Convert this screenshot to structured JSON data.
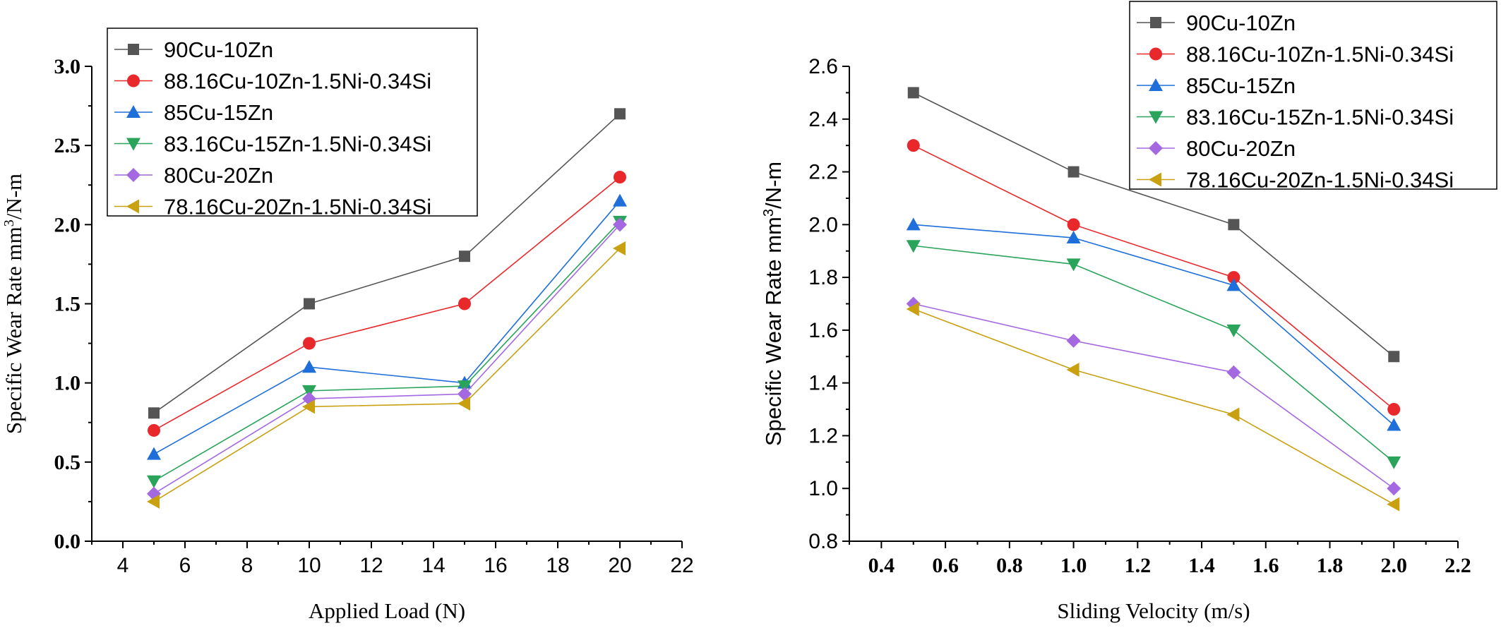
{
  "chart_data": [
    {
      "type": "line",
      "xlabel": "Applied Load (N)",
      "ylabel": "Specific Wear Rate mm³/N-m",
      "ylabel_parts": [
        "Specific Wear Rate mm",
        "3",
        "/N-m"
      ],
      "xlim": [
        3,
        22
      ],
      "ylim": [
        0.0,
        3.0
      ],
      "xticks": [
        4,
        6,
        8,
        10,
        12,
        14,
        16,
        18,
        20,
        22
      ],
      "yticks": [
        0.0,
        0.5,
        1.0,
        1.5,
        2.0,
        2.5,
        3.0
      ],
      "xtick_labels": [
        "4",
        "6",
        "8",
        "10",
        "12",
        "14",
        "16",
        "18",
        "20",
        "22"
      ],
      "ytick_labels": [
        "0.0",
        "0.5",
        "1.0",
        "1.5",
        "2.0",
        "2.5",
        "3.0"
      ],
      "grid": false,
      "legend_position": "top-left",
      "x": [
        5,
        10,
        15,
        20
      ],
      "series": [
        {
          "name": "90Cu-10Zn",
          "color": "#555555",
          "marker": "square",
          "values": [
            0.81,
            1.5,
            1.8,
            2.7
          ]
        },
        {
          "name": "88.16Cu-10Zn-1.5Ni-0.34Si",
          "color": "#e8282b",
          "marker": "circle",
          "values": [
            0.7,
            1.25,
            1.5,
            2.3
          ]
        },
        {
          "name": "85Cu-15Zn",
          "color": "#1e6fd9",
          "marker": "triangle-up",
          "values": [
            0.55,
            1.1,
            1.0,
            2.15
          ]
        },
        {
          "name": "83.16Cu-15Zn-1.5Ni-0.34Si",
          "color": "#2aa35b",
          "marker": "triangle-down",
          "values": [
            0.38,
            0.95,
            0.98,
            2.02
          ]
        },
        {
          "name": "80Cu-20Zn",
          "color": "#a468e0",
          "marker": "diamond",
          "values": [
            0.3,
            0.9,
            0.93,
            2.0
          ]
        },
        {
          "name": "78.16Cu-20Zn-1.5Ni-0.34Si",
          "color": "#c9a010",
          "marker": "triangle-left",
          "values": [
            0.25,
            0.85,
            0.87,
            1.85
          ]
        }
      ]
    },
    {
      "type": "line",
      "xlabel": "Sliding Velocity (m/s)",
      "ylabel": "Specific Wear Rate mm³/N-m",
      "ylabel_parts": [
        "Specific Wear Rate mm",
        "3",
        "/N-m"
      ],
      "xlim": [
        0.3,
        2.2
      ],
      "ylim": [
        0.8,
        2.6
      ],
      "xticks": [
        0.4,
        0.6,
        0.8,
        1.0,
        1.2,
        1.4,
        1.6,
        1.8,
        2.0,
        2.2
      ],
      "yticks": [
        0.8,
        1.0,
        1.2,
        1.4,
        1.6,
        1.8,
        2.0,
        2.2,
        2.4,
        2.6
      ],
      "xtick_labels": [
        "0.4",
        "0.6",
        "0.8",
        "1.0",
        "1.2",
        "1.4",
        "1.6",
        "1.8",
        "2.0",
        "2.2"
      ],
      "ytick_labels": [
        "0.8",
        "1.0",
        "1.2",
        "1.4",
        "1.6",
        "1.8",
        "2.0",
        "2.2",
        "2.4",
        "2.6"
      ],
      "grid": false,
      "legend_position": "top-right",
      "x": [
        0.5,
        1.0,
        1.5,
        2.0
      ],
      "series": [
        {
          "name": "90Cu-10Zn",
          "color": "#555555",
          "marker": "square",
          "values": [
            2.5,
            2.2,
            2.0,
            1.5
          ]
        },
        {
          "name": "88.16Cu-10Zn-1.5Ni-0.34Si",
          "color": "#e8282b",
          "marker": "circle",
          "values": [
            2.3,
            2.0,
            1.8,
            1.3
          ]
        },
        {
          "name": "85Cu-15Zn",
          "color": "#1e6fd9",
          "marker": "triangle-up",
          "values": [
            2.0,
            1.95,
            1.77,
            1.24
          ]
        },
        {
          "name": "83.16Cu-15Zn-1.5Ni-0.34Si",
          "color": "#2aa35b",
          "marker": "triangle-down",
          "values": [
            1.92,
            1.85,
            1.6,
            1.1
          ]
        },
        {
          "name": "80Cu-20Zn",
          "color": "#a468e0",
          "marker": "diamond",
          "values": [
            1.7,
            1.56,
            1.44,
            1.0
          ]
        },
        {
          "name": "78.16Cu-20Zn-1.5Ni-0.34Si",
          "color": "#c9a010",
          "marker": "triangle-left",
          "values": [
            1.68,
            1.45,
            1.28,
            0.94
          ]
        }
      ]
    }
  ]
}
